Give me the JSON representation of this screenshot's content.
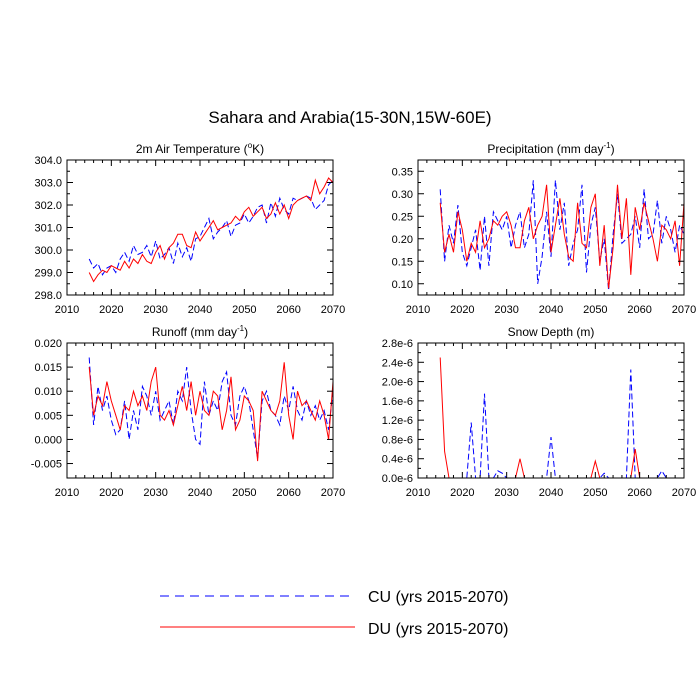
{
  "figure_title": "Sahara and Arabia(15-30N,15W-60E)",
  "colors": {
    "cu": "#0000ff",
    "du": "#ff0000",
    "axis": "#000000"
  },
  "legend": {
    "cu_label": "CU (yrs 2015-2070)",
    "du_label": "DU (yrs 2015-2070)"
  },
  "chart_data": [
    {
      "type": "line",
      "title": "2m Air Temperature (°K)",
      "title_main": "2m Air Temperature (",
      "title_sup": "o",
      "title_tail": "K)",
      "xlim": [
        2010,
        2070
      ],
      "ylim": [
        298.0,
        304.0
      ],
      "xticks": [
        2010,
        2020,
        2030,
        2040,
        2050,
        2060,
        2070
      ],
      "yticks": [
        "298.0",
        "299.0",
        "300.0",
        "301.0",
        "302.0",
        "303.0",
        "304.0"
      ],
      "ytick_values": [
        298,
        299,
        300,
        301,
        302,
        303,
        304
      ],
      "x_start": 2015,
      "series": [
        {
          "name": "CU",
          "style": "dashed",
          "values": [
            299.6,
            299.2,
            299.4,
            298.9,
            299.2,
            299.3,
            299.0,
            299.6,
            299.9,
            299.5,
            300.2,
            299.8,
            299.9,
            300.2,
            299.7,
            300.4,
            299.6,
            299.8,
            300.1,
            299.4,
            300.3,
            299.7,
            300.1,
            299.5,
            300.5,
            300.6,
            301.0,
            301.4,
            300.5,
            300.8,
            301.0,
            301.3,
            300.6,
            301.1,
            301.2,
            301.6,
            301.2,
            301.5,
            301.9,
            302.0,
            301.2,
            302.1,
            301.5,
            302.3,
            301.8,
            301.6,
            302.3,
            302.2,
            302.3,
            302.4,
            302.3,
            301.8,
            302.0,
            302.2,
            302.9,
            303.1
          ]
        },
        {
          "name": "DU",
          "style": "solid",
          "values": [
            299.0,
            298.6,
            298.9,
            299.1,
            299.0,
            299.3,
            299.2,
            299.1,
            299.5,
            299.2,
            299.6,
            299.4,
            299.8,
            299.5,
            299.4,
            299.9,
            300.2,
            299.6,
            300.1,
            300.3,
            300.7,
            300.7,
            300.2,
            300.1,
            300.8,
            300.4,
            300.7,
            301.0,
            301.3,
            300.9,
            301.0,
            301.1,
            301.2,
            301.5,
            301.3,
            301.7,
            301.9,
            301.5,
            301.7,
            301.9,
            301.4,
            301.6,
            302.1,
            301.6,
            302.0,
            301.4,
            302.0,
            302.2,
            302.3,
            302.4,
            302.2,
            303.1,
            302.5,
            302.8,
            303.2,
            303.0
          ]
        }
      ]
    },
    {
      "type": "line",
      "title": "Precipitation (mm day-1)",
      "title_main": "Precipitation (mm day",
      "title_sup": "-1",
      "title_tail": ")",
      "xlim": [
        2010,
        2070
      ],
      "ylim": [
        0.075,
        0.375
      ],
      "xticks": [
        2010,
        2020,
        2030,
        2040,
        2050,
        2060,
        2070
      ],
      "yticks": [
        "0.10",
        "0.15",
        "0.20",
        "0.25",
        "0.30",
        "0.35"
      ],
      "ytick_values": [
        0.1,
        0.15,
        0.2,
        0.25,
        0.3,
        0.35
      ],
      "x_start": 2015,
      "series": [
        {
          "name": "CU",
          "style": "dashed",
          "values": [
            0.31,
            0.15,
            0.23,
            0.19,
            0.275,
            0.17,
            0.14,
            0.18,
            0.22,
            0.13,
            0.25,
            0.14,
            0.26,
            0.24,
            0.22,
            0.25,
            0.18,
            0.23,
            0.26,
            0.18,
            0.21,
            0.33,
            0.1,
            0.16,
            0.26,
            0.16,
            0.33,
            0.22,
            0.28,
            0.14,
            0.19,
            0.22,
            0.32,
            0.125,
            0.23,
            0.27,
            0.15,
            0.2,
            0.085,
            0.21,
            0.3,
            0.19,
            0.2,
            0.21,
            0.25,
            0.18,
            0.31,
            0.2,
            0.21,
            0.285,
            0.19,
            0.25,
            0.22,
            0.17,
            0.23,
            0.21
          ]
        },
        {
          "name": "DU",
          "style": "solid",
          "values": [
            0.28,
            0.17,
            0.21,
            0.17,
            0.26,
            0.22,
            0.15,
            0.19,
            0.17,
            0.24,
            0.18,
            0.2,
            0.24,
            0.23,
            0.25,
            0.26,
            0.23,
            0.18,
            0.18,
            0.24,
            0.27,
            0.2,
            0.23,
            0.25,
            0.32,
            0.17,
            0.23,
            0.29,
            0.21,
            0.16,
            0.15,
            0.28,
            0.19,
            0.18,
            0.27,
            0.3,
            0.14,
            0.23,
            0.09,
            0.18,
            0.32,
            0.2,
            0.29,
            0.12,
            0.27,
            0.22,
            0.28,
            0.24,
            0.2,
            0.15,
            0.23,
            0.22,
            0.2,
            0.24,
            0.14,
            0.28
          ]
        }
      ]
    },
    {
      "type": "line",
      "title": "Runoff (mm day-1)",
      "title_main": "Runoff (mm day",
      "title_sup": "-1",
      "title_tail": ")",
      "xlim": [
        2010,
        2070
      ],
      "ylim": [
        -0.008,
        0.02
      ],
      "xticks": [
        2010,
        2020,
        2030,
        2040,
        2050,
        2060,
        2070
      ],
      "yticks": [
        "-0.005",
        "0.000",
        "0.005",
        "0.010",
        "0.015",
        "0.020"
      ],
      "ytick_values": [
        -0.005,
        0.0,
        0.005,
        0.01,
        0.015,
        0.02
      ],
      "x_start": 2015,
      "series": [
        {
          "name": "CU",
          "style": "dashed",
          "values": [
            0.017,
            0.003,
            0.011,
            0.006,
            0.009,
            0.004,
            0.001,
            0.002,
            0.008,
            0.0,
            0.006,
            0.002,
            0.011,
            0.009,
            0.005,
            0.01,
            0.004,
            0.006,
            0.008,
            0.003,
            0.01,
            0.008,
            0.015,
            0.006,
            0.0,
            -0.001,
            0.012,
            0.005,
            0.008,
            0.006,
            0.012,
            0.014,
            0.005,
            0.003,
            0.009,
            0.011,
            0.008,
            0.002,
            -0.004,
            0.008,
            0.01,
            0.006,
            0.005,
            0.003,
            0.009,
            0.006,
            0.011,
            0.006,
            0.004,
            0.008,
            0.005,
            0.007,
            0.004,
            0.006,
            0.002,
            0.01
          ]
        },
        {
          "name": "DU",
          "style": "solid",
          "values": [
            0.015,
            0.005,
            0.009,
            0.007,
            0.012,
            0.008,
            0.005,
            0.002,
            0.007,
            0.006,
            0.01,
            0.007,
            0.009,
            0.006,
            0.012,
            0.015,
            0.005,
            0.004,
            0.006,
            0.003,
            0.007,
            0.011,
            0.006,
            0.012,
            0.005,
            0.01,
            0.006,
            0.005,
            0.01,
            0.009,
            0.002,
            0.006,
            0.013,
            0.002,
            0.004,
            0.009,
            0.008,
            0.006,
            -0.0045,
            0.01,
            0.008,
            0.006,
            0.005,
            0.008,
            0.016,
            0.005,
            0.0,
            0.01,
            0.007,
            0.008,
            0.006,
            0.004,
            0.008,
            0.005,
            0.0,
            0.012
          ]
        }
      ]
    },
    {
      "type": "line",
      "title": "Snow Depth (m)",
      "title_main": "Snow Depth (m)",
      "title_sup": "",
      "title_tail": "",
      "xlim": [
        2010,
        2070
      ],
      "ylim": [
        0,
        2.8e-06
      ],
      "xticks": [
        2010,
        2020,
        2030,
        2040,
        2050,
        2060,
        2070
      ],
      "yticks": [
        "0.0e-6",
        "0.4e-6",
        "0.8e-6",
        "1.2e-6",
        "1.6e-6",
        "2.0e-6",
        "2.4e-6",
        "2.8e-6"
      ],
      "ytick_values": [
        0,
        4e-07,
        8e-07,
        1.2e-06,
        1.6e-06,
        2e-06,
        2.4e-06,
        2.8e-06
      ],
      "x_start": 2015,
      "series": [
        {
          "name": "CU",
          "style": "dashed",
          "values": [
            0,
            0,
            0,
            0,
            0,
            0,
            0,
            1.15e-06,
            0,
            0,
            1.75e-06,
            0,
            0,
            1.5e-07,
            1e-07,
            0,
            0,
            0,
            0,
            0,
            0,
            0,
            0,
            0,
            0,
            8.5e-07,
            0,
            0,
            0,
            0,
            0,
            0,
            0,
            0,
            0,
            0,
            0,
            1e-07,
            0,
            0,
            0,
            0,
            0,
            2.25e-06,
            0,
            0,
            0,
            0,
            0,
            0,
            1.5e-07,
            0,
            0,
            0,
            0,
            0
          ]
        },
        {
          "name": "DU",
          "style": "solid",
          "values": [
            2.5e-06,
            5.5e-07,
            0,
            0,
            0,
            0,
            0,
            0,
            0,
            0,
            0,
            0,
            0,
            0,
            0,
            0,
            0,
            0,
            4e-07,
            0,
            0,
            0,
            0,
            0,
            0,
            0,
            0,
            0,
            0,
            0,
            0,
            0,
            0,
            0,
            0,
            3.5e-07,
            0,
            0,
            0,
            0,
            0,
            0,
            0,
            0,
            6e-07,
            0,
            0,
            0,
            0,
            0,
            0,
            0,
            0,
            0,
            0,
            0
          ]
        }
      ]
    }
  ]
}
